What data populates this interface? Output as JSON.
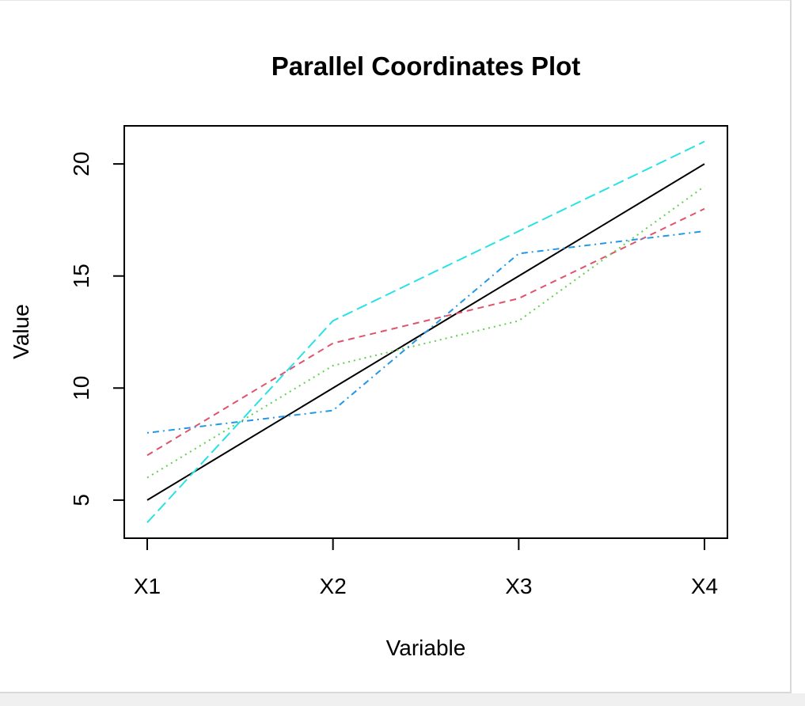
{
  "chart_data": {
    "type": "line",
    "title": "Parallel Coordinates Plot",
    "xlabel": "Variable",
    "ylabel": "Value",
    "categories": [
      "X1",
      "X2",
      "X3",
      "X4"
    ],
    "ylim": [
      3.3,
      21.7
    ],
    "y_ticks": [
      5,
      10,
      15,
      20
    ],
    "y_tick_labels": [
      "5",
      "10",
      "15",
      "20"
    ],
    "grid": false,
    "legend": "none",
    "series": [
      {
        "values": [
          5,
          10,
          15,
          20
        ],
        "color": "#000000",
        "dash": "solid"
      },
      {
        "values": [
          7,
          12,
          14,
          18
        ],
        "color": "#DF536B",
        "dash": "dashed"
      },
      {
        "values": [
          6,
          11,
          13,
          19
        ],
        "color": "#61D04F",
        "dash": "dotted"
      },
      {
        "values": [
          8,
          9,
          16,
          17
        ],
        "color": "#2297E6",
        "dash": "dotdash"
      },
      {
        "values": [
          4,
          13,
          17,
          21
        ],
        "color": "#28E2E5",
        "dash": "longdash"
      }
    ]
  }
}
